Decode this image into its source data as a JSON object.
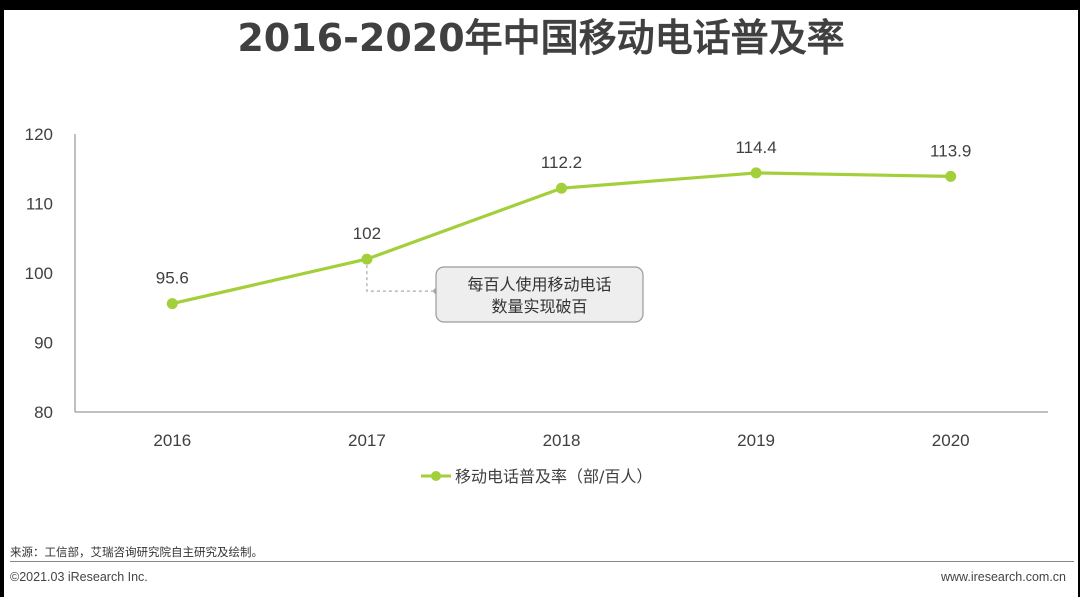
{
  "chart_data": {
    "type": "line",
    "title": "2016-2020年中国移动电话普及率",
    "categories": [
      "2016",
      "2017",
      "2018",
      "2019",
      "2020"
    ],
    "series": [
      {
        "name": "移动电话普及率（部/百人）",
        "values": [
          95.6,
          102,
          112.2,
          114.4,
          113.9
        ]
      }
    ],
    "data_labels": [
      "95.6",
      "102",
      "112.2",
      "114.4",
      "113.9"
    ],
    "y_ticks": [
      "80",
      "90",
      "100",
      "110",
      "120"
    ],
    "ylim": [
      80,
      120
    ],
    "xlabel": "",
    "ylabel": "",
    "legend_position": "bottom-center",
    "annotation": {
      "line1": "每百人使用移动电话",
      "line2": "数量实现破百",
      "target_year": "2017"
    }
  },
  "colors": {
    "series": "#a3cf3b",
    "axis": "#808080",
    "text": "#404040",
    "callout_bg": "#eeeeee",
    "callout_border": "#9a9a9a"
  },
  "footer": {
    "source": "来源：工信部，艾瑞咨询研究院自主研究及绘制。",
    "copyright": "©2021.03 iResearch Inc.",
    "website": "www.iresearch.com.cn"
  }
}
